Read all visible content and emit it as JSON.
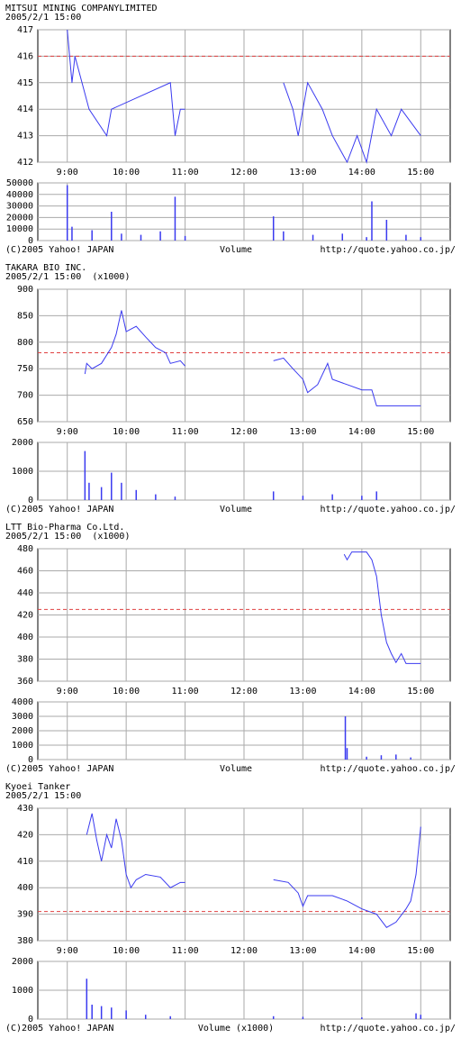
{
  "chart_data": [
    {
      "type": "line",
      "title": "MITSUI MINING COMPANYLIMITED",
      "subtitle": "2005/2/1 15:00",
      "xlim": [
        8.5,
        15.5
      ],
      "xticks": [
        {
          "value": 9,
          "label": "9:00"
        },
        {
          "value": 10,
          "label": "10:00"
        },
        {
          "value": 11,
          "label": "11:00"
        },
        {
          "value": 12,
          "label": "12:00"
        },
        {
          "value": 13,
          "label": "13:00"
        },
        {
          "value": 14,
          "label": "14:00"
        },
        {
          "value": 15,
          "label": "15:00"
        }
      ],
      "ylim": [
        412,
        417
      ],
      "yticks": [
        412,
        413,
        414,
        415,
        416,
        417
      ],
      "ref_line": 416,
      "ref_color": "#e04040",
      "series": [
        {
          "color": "#3a3af0",
          "x": [
            9.0,
            9.08,
            9.13,
            9.25,
            9.37,
            9.67,
            9.75,
            10.75,
            10.83,
            10.92,
            11.0,
            null,
            12.67,
            12.83,
            12.92,
            13.08,
            13.33,
            13.5,
            13.75,
            13.92,
            14.08,
            14.25,
            14.5,
            14.67,
            15.0
          ],
          "values": [
            417,
            415,
            416,
            415,
            414,
            413,
            414,
            415,
            413,
            414,
            414,
            null,
            415,
            414,
            413,
            415,
            414,
            413,
            412,
            413,
            412,
            414,
            413,
            414,
            413
          ]
        }
      ],
      "volume": {
        "color": "#3a3af0",
        "x": [
          9.0,
          9.08,
          9.42,
          9.75,
          9.92,
          10.25,
          10.58,
          10.83,
          11.0,
          12.5,
          12.67,
          13.17,
          13.67,
          14.08,
          14.17,
          14.42,
          14.75,
          15.0
        ],
        "values": [
          48000,
          12000,
          9000,
          25000,
          6000,
          5000,
          8000,
          38000,
          4000,
          21000,
          8000,
          5000,
          6000,
          3000,
          34000,
          18000,
          5000,
          3000
        ],
        "ylim": [
          0,
          50000
        ],
        "yticks": [
          0,
          10000,
          20000,
          30000,
          40000,
          50000
        ]
      },
      "footer": {
        "left": "(C)2005 Yahoo! JAPAN",
        "center": "Volume",
        "right": "http://quote.yahoo.co.jp/"
      }
    },
    {
      "type": "line",
      "title": "TAKARA BIO INC.",
      "subtitle": "2005/2/1 15:00  (x1000)",
      "xlim": [
        8.5,
        15.5
      ],
      "xticks": [
        {
          "value": 9,
          "label": "9:00"
        },
        {
          "value": 10,
          "label": "10:00"
        },
        {
          "value": 11,
          "label": "11:00"
        },
        {
          "value": 12,
          "label": "12:00"
        },
        {
          "value": 13,
          "label": "13:00"
        },
        {
          "value": 14,
          "label": "14:00"
        },
        {
          "value": 15,
          "label": "15:00"
        }
      ],
      "ylim": [
        650,
        900
      ],
      "yticks": [
        650,
        700,
        750,
        800,
        850,
        900
      ],
      "ref_line": 780,
      "ref_color": "#e04040",
      "series": [
        {
          "color": "#3a3af0",
          "x": [
            9.3,
            9.33,
            9.42,
            9.58,
            9.75,
            9.83,
            9.92,
            10.0,
            10.17,
            10.33,
            10.5,
            10.67,
            10.75,
            10.92,
            11.0,
            null,
            12.5,
            12.67,
            12.83,
            13.0,
            13.08,
            13.25,
            13.42,
            13.5,
            13.75,
            14.0,
            14.17,
            14.25,
            15.0
          ],
          "values": [
            740,
            760,
            750,
            760,
            790,
            815,
            860,
            820,
            830,
            810,
            790,
            780,
            760,
            765,
            755,
            null,
            765,
            770,
            750,
            730,
            705,
            720,
            760,
            730,
            720,
            710,
            710,
            680,
            680
          ]
        }
      ],
      "volume": {
        "color": "#3a3af0",
        "x": [
          9.3,
          9.37,
          9.58,
          9.75,
          9.92,
          10.17,
          10.5,
          10.83,
          12.5,
          13.0,
          13.5,
          14.0,
          14.25
        ],
        "values": [
          1700,
          600,
          450,
          950,
          600,
          350,
          200,
          120,
          300,
          150,
          200,
          150,
          300
        ],
        "ylim": [
          0,
          2000
        ],
        "yticks": [
          0,
          1000,
          2000
        ]
      },
      "footer": {
        "left": "(C)2005 Yahoo! JAPAN",
        "center": "Volume",
        "right": "http://quote.yahoo.co.jp/"
      }
    },
    {
      "type": "line",
      "title": "LTT Bio-Pharma Co.Ltd.",
      "subtitle": "2005/2/1 15:00  (x1000)",
      "xlim": [
        8.5,
        15.5
      ],
      "xticks": [
        {
          "value": 9,
          "label": "9:00"
        },
        {
          "value": 10,
          "label": "10:00"
        },
        {
          "value": 11,
          "label": "11:00"
        },
        {
          "value": 12,
          "label": "12:00"
        },
        {
          "value": 13,
          "label": "13:00"
        },
        {
          "value": 14,
          "label": "14:00"
        },
        {
          "value": 15,
          "label": "15:00"
        }
      ],
      "ylim": [
        360,
        480
      ],
      "yticks": [
        360,
        380,
        400,
        420,
        440,
        460,
        480
      ],
      "ref_line": 425,
      "ref_color": "#e04040",
      "series": [
        {
          "color": "#3a3af0",
          "x": [
            13.7,
            13.75,
            13.83,
            14.08,
            14.17,
            14.25,
            14.33,
            14.42,
            14.5,
            14.58,
            14.67,
            14.75,
            15.0
          ],
          "values": [
            475,
            470,
            477,
            477,
            470,
            455,
            420,
            395,
            385,
            377,
            385,
            376,
            376
          ]
        }
      ],
      "volume": {
        "color": "#3a3af0",
        "x": [
          13.72,
          13.75,
          14.08,
          14.33,
          14.58,
          14.83
        ],
        "values": [
          3000,
          800,
          200,
          300,
          350,
          150
        ],
        "ylim": [
          0,
          4000
        ],
        "yticks": [
          0,
          1000,
          2000,
          3000,
          4000
        ]
      },
      "footer": {
        "left": "(C)2005 Yahoo! JAPAN",
        "center": "Volume",
        "right": "http://quote.yahoo.co.jp/"
      }
    },
    {
      "type": "line",
      "title": "Kyoei Tanker",
      "subtitle": "2005/2/1 15:00",
      "xlim": [
        8.5,
        15.5
      ],
      "xticks": [
        {
          "value": 9,
          "label": "9:00"
        },
        {
          "value": 10,
          "label": "10:00"
        },
        {
          "value": 11,
          "label": "11:00"
        },
        {
          "value": 12,
          "label": "12:00"
        },
        {
          "value": 13,
          "label": "13:00"
        },
        {
          "value": 14,
          "label": "14:00"
        },
        {
          "value": 15,
          "label": "15:00"
        }
      ],
      "ylim": [
        380,
        430
      ],
      "yticks": [
        380,
        390,
        400,
        410,
        420,
        430
      ],
      "ref_line": 391,
      "ref_color": "#e04040",
      "series": [
        {
          "color": "#3a3af0",
          "x": [
            9.33,
            9.42,
            9.5,
            9.58,
            9.67,
            9.75,
            9.83,
            9.92,
            10.0,
            10.08,
            10.17,
            10.33,
            10.58,
            10.75,
            10.92,
            11.0,
            null,
            12.5,
            12.75,
            12.92,
            13.0,
            13.08,
            13.5,
            13.75,
            14.0,
            14.25,
            14.42,
            14.58,
            14.75,
            14.83,
            14.92,
            15.0
          ],
          "values": [
            420,
            428,
            418,
            410,
            420,
            415,
            426,
            418,
            405,
            400,
            403,
            405,
            404,
            400,
            402,
            402,
            null,
            403,
            402,
            398,
            393,
            397,
            397,
            395,
            392,
            390,
            385,
            387,
            392,
            395,
            405,
            423
          ]
        }
      ],
      "volume": {
        "color": "#3a3af0",
        "x": [
          9.33,
          9.42,
          9.58,
          9.75,
          10.0,
          10.33,
          10.75,
          12.5,
          13.0,
          14.0,
          14.92,
          15.0
        ],
        "values": [
          1400,
          500,
          450,
          400,
          300,
          150,
          100,
          100,
          80,
          60,
          200,
          150
        ],
        "ylim": [
          0,
          2000
        ],
        "yticks": [
          0,
          1000,
          2000
        ]
      },
      "footer": {
        "left": "(C)2005 Yahoo! JAPAN",
        "center": "Volume (x1000)",
        "right": "http://quote.yahoo.co.jp/"
      }
    }
  ]
}
